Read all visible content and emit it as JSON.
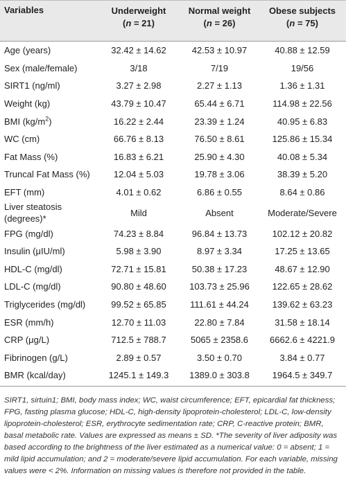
{
  "table": {
    "header": {
      "variables": "Variables",
      "groups": [
        {
          "title": "Underweight",
          "n_open": "(",
          "n_symbol": "n",
          "n_rest": " = 21)"
        },
        {
          "title": "Normal weight",
          "n_open": "(",
          "n_symbol": "n",
          "n_rest": " = 26)"
        },
        {
          "title": "Obese subjects",
          "n_open": "(",
          "n_symbol": "n",
          "n_rest": " = 75)"
        }
      ]
    },
    "rows": [
      {
        "label": "Age (years)",
        "values": [
          "32.42 ± 14.62",
          "42.53 ± 10.97",
          "40.88 ± 12.59"
        ]
      },
      {
        "label": "Sex (male/female)",
        "values": [
          "3/18",
          "7/19",
          "19/56"
        ]
      },
      {
        "label": "SIRT1 (ng/ml)",
        "values": [
          "3.27 ± 2.98",
          "2.27 ± 1.13",
          "1.36 ± 1.31"
        ]
      },
      {
        "label": "Weight (kg)",
        "values": [
          "43.79 ± 10.47",
          "65.44 ± 6.71",
          "114.98 ± 22.56"
        ]
      },
      {
        "label": "BMI (kg/m",
        "label_sup": "2",
        "label_after": ")",
        "values": [
          "16.22 ± 2.44",
          "23.39 ± 1.24",
          "40.95 ± 6.83"
        ]
      },
      {
        "label": "WC (cm)",
        "values": [
          "66.76 ± 8.13",
          "76.50 ± 8.61",
          "125.86 ± 15.34"
        ]
      },
      {
        "label": "Fat Mass (%)",
        "values": [
          "16.83 ± 6.21",
          "25.90 ± 4.30",
          "40.08 ± 5.34"
        ]
      },
      {
        "label": "Truncal Fat Mass (%)",
        "values": [
          "12.04 ± 5.03",
          "19.78 ± 3.06",
          "38.39 ± 5.20"
        ]
      },
      {
        "label": "EFT (mm)",
        "values": [
          "4.01 ± 0.62",
          "6.86 ± 0.55",
          "8.64 ± 0.86"
        ]
      },
      {
        "label": "Liver steatosis (degrees)*",
        "values": [
          "Mild",
          "Absent",
          "Moderate/Severe"
        ]
      },
      {
        "label": "FPG (mg/dl)",
        "values": [
          "74.23 ± 8.84",
          "96.84 ± 13.73",
          "102.12 ± 20.82"
        ]
      },
      {
        "label": "Insulin (μIU/ml)",
        "values": [
          "5.98 ± 3.90",
          "8.97 ± 3.34",
          "17.25 ± 13.65"
        ]
      },
      {
        "label": "HDL-C (mg/dl)",
        "values": [
          "72.71 ± 15.81",
          "50.38 ± 17.23",
          "48.67 ± 12.90"
        ]
      },
      {
        "label": "LDL-C (mg/dl)",
        "values": [
          "90.80 ± 48.60",
          "103.73 ± 25.96",
          "122.65 ± 28.62"
        ]
      },
      {
        "label": "Triglycerides (mg/dl)",
        "values": [
          "99.52 ± 65.85",
          "111.61 ± 44.24",
          "139.62 ± 63.23"
        ]
      },
      {
        "label": "ESR (mm/h)",
        "values": [
          "12.70 ± 11.03",
          "22.80 ± 7.84",
          "31.58 ± 18.14"
        ]
      },
      {
        "label": "CRP (μg/L)",
        "values": [
          "712.5 ± 788.7",
          "5065 ± 2358.6",
          "6662.6 ± 4221.9"
        ]
      },
      {
        "label": "Fibrinogen (g/L)",
        "values": [
          "2.89 ± 0.57",
          "3.50 ± 0.70",
          "3.84 ± 0.77"
        ]
      },
      {
        "label": "BMR (kcal/day)",
        "values": [
          "1245.1 ± 149.3",
          "1389.0 ± 303.8",
          "1964.5 ± 349.7"
        ]
      }
    ],
    "footnote": "SIRT1, sirtuin1; BMI, body mass index; WC, waist circumference; EFT, epicardial fat thickness; FPG, fasting plasma glucose; HDL-C, high-density lipoprotein-cholesterol; LDL-C, low-density lipoprotein-cholesterol; ESR, erythrocyte sedimentation rate; CRP, C-reactive protein; BMR, basal metabolic rate. Values are expressed as means ± SD. *The severity of liver adiposity was based according to the brightness of the liver estimated as a numerical value: 0 = absent; 1 = mild lipid accumulation; and 2 = moderate/severe lipid accumulation. For each variable, missing values were < 2%. Information on missing values is therefore not provided in the table."
  }
}
